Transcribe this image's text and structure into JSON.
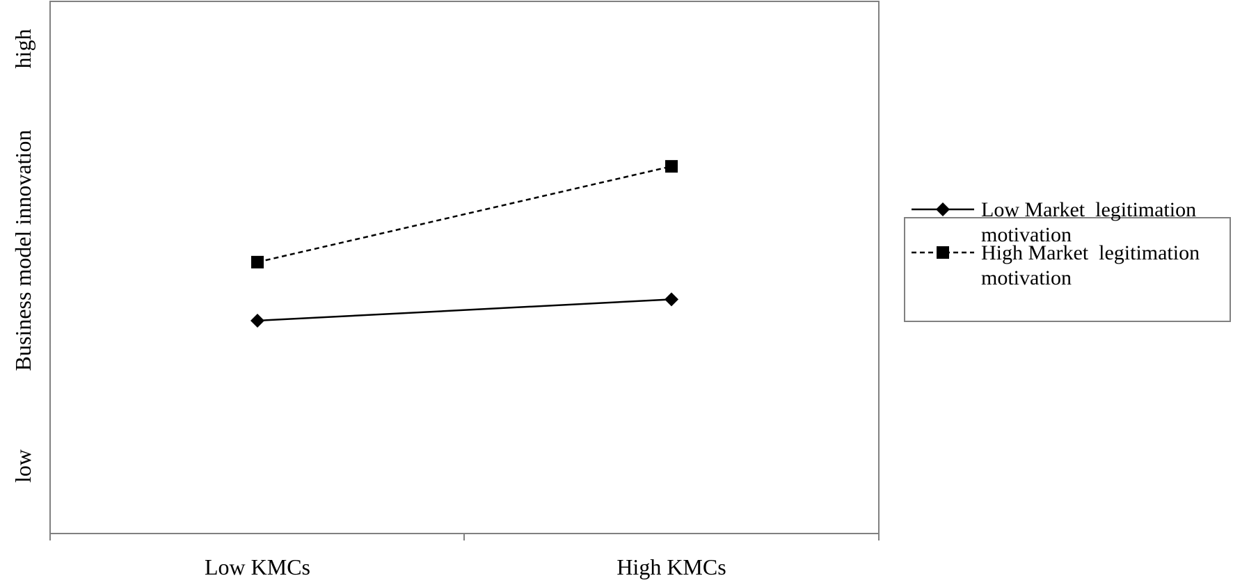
{
  "chart_data": {
    "type": "line",
    "title": "",
    "xlabel": "",
    "ylabel": "Business model innovation",
    "y_tick_labels": {
      "low": "low",
      "high": "high"
    },
    "categories": [
      "Low KMCs",
      "High KMCs"
    ],
    "ylim": [
      0,
      1
    ],
    "grid": false,
    "legend_position": "right",
    "series": [
      {
        "name": "Low Market legitimation motivation",
        "name_lines": [
          "Low Market  legitimation",
          "motivation"
        ],
        "values": [
          0.4,
          0.44
        ],
        "line_style": "solid",
        "marker": "diamond",
        "color": "#000000"
      },
      {
        "name": "High Market legitimation motivation",
        "name_lines": [
          "High Market  legitimation",
          "motivation"
        ],
        "values": [
          0.51,
          0.69
        ],
        "line_style": "dashed",
        "marker": "square",
        "color": "#000000"
      }
    ]
  },
  "colors": {
    "frame": "#808080",
    "line": "#000000",
    "background": "#ffffff"
  }
}
